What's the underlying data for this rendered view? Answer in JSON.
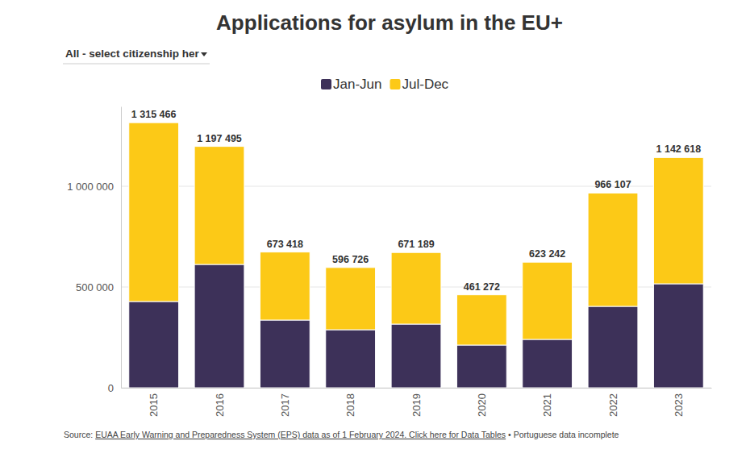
{
  "chart_data": {
    "type": "bar",
    "title": "Applications for asylum in the EU+",
    "dropdown_label": "All - select citizenship her",
    "categories": [
      "2015",
      "2016",
      "2017",
      "2018",
      "2019",
      "2020",
      "2021",
      "2022",
      "2023"
    ],
    "series": [
      {
        "name": "Jan-Jun",
        "color": "#3d3159",
        "values": [
          428000,
          612000,
          336000,
          288000,
          316000,
          212000,
          240000,
          404000,
          516000
        ]
      },
      {
        "name": "Jul-Dec",
        "color": "#fcc917",
        "values": [
          887466,
          585495,
          337418,
          308726,
          355189,
          249272,
          383242,
          562107,
          626618
        ]
      }
    ],
    "totals": [
      1315466,
      1197495,
      673418,
      596726,
      671189,
      461272,
      623242,
      966107,
      1142618
    ],
    "total_labels": [
      "1 315 466",
      "1 197 495",
      "673 418",
      "596 726",
      "671 189",
      "461 272",
      "623 242",
      "966 107",
      "1 142 618"
    ],
    "ylim": [
      0,
      1396000
    ],
    "yticks": [
      0,
      {
        "value": 500000,
        "label": "500 000"
      },
      {
        "value": 1000000,
        "label": "1 000 000"
      }
    ],
    "stacked": true,
    "grid": true,
    "legend": "top",
    "source": {
      "prefix": "Source:",
      "link": "EUAA Early Warning and Preparedness System (EPS) data as of 1 February 2024. Click here for Data Tables",
      "note": "• Portuguese data incomplete"
    }
  }
}
